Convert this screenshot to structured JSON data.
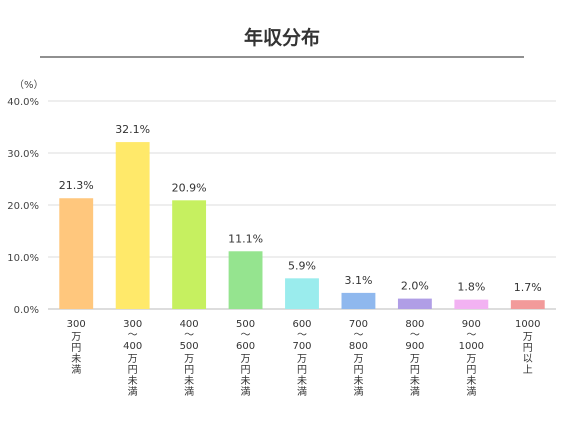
{
  "chart_data": {
    "type": "bar",
    "title": "年収分布",
    "unit_label": "（%）",
    "categories": [
      [
        "300",
        "万円未満"
      ],
      [
        "300",
        "～",
        "400",
        "万円未満"
      ],
      [
        "400",
        "～",
        "500",
        "万円未満"
      ],
      [
        "500",
        "～",
        "600",
        "万円未満"
      ],
      [
        "600",
        "～",
        "700",
        "万円未満"
      ],
      [
        "700",
        "～",
        "800",
        "万円未満"
      ],
      [
        "800",
        "～",
        "900",
        "万円未満"
      ],
      [
        "900",
        "～",
        "1000",
        "万円未満"
      ],
      [
        "1000",
        "万円以上"
      ]
    ],
    "values": [
      21.3,
      32.1,
      20.9,
      11.1,
      5.9,
      3.1,
      2.0,
      1.8,
      1.7
    ],
    "value_labels": [
      "21.3%",
      "32.1%",
      "20.9%",
      "11.1%",
      "5.9%",
      "3.1%",
      "2.0%",
      "1.8%",
      "1.7%"
    ],
    "colors": [
      "#ffc77d",
      "#ffe96a",
      "#c6f060",
      "#95e48f",
      "#9aeced",
      "#8fb8ee",
      "#b09ee6",
      "#f2b2f2",
      "#f29a9a"
    ],
    "ylim": [
      0,
      40
    ],
    "yticks": [
      0,
      10,
      20,
      30,
      40
    ],
    "ytick_labels": [
      "0.0%",
      "10.0%",
      "20.0%",
      "30.0%",
      "40.0%"
    ],
    "grid": true,
    "legend": "none"
  }
}
